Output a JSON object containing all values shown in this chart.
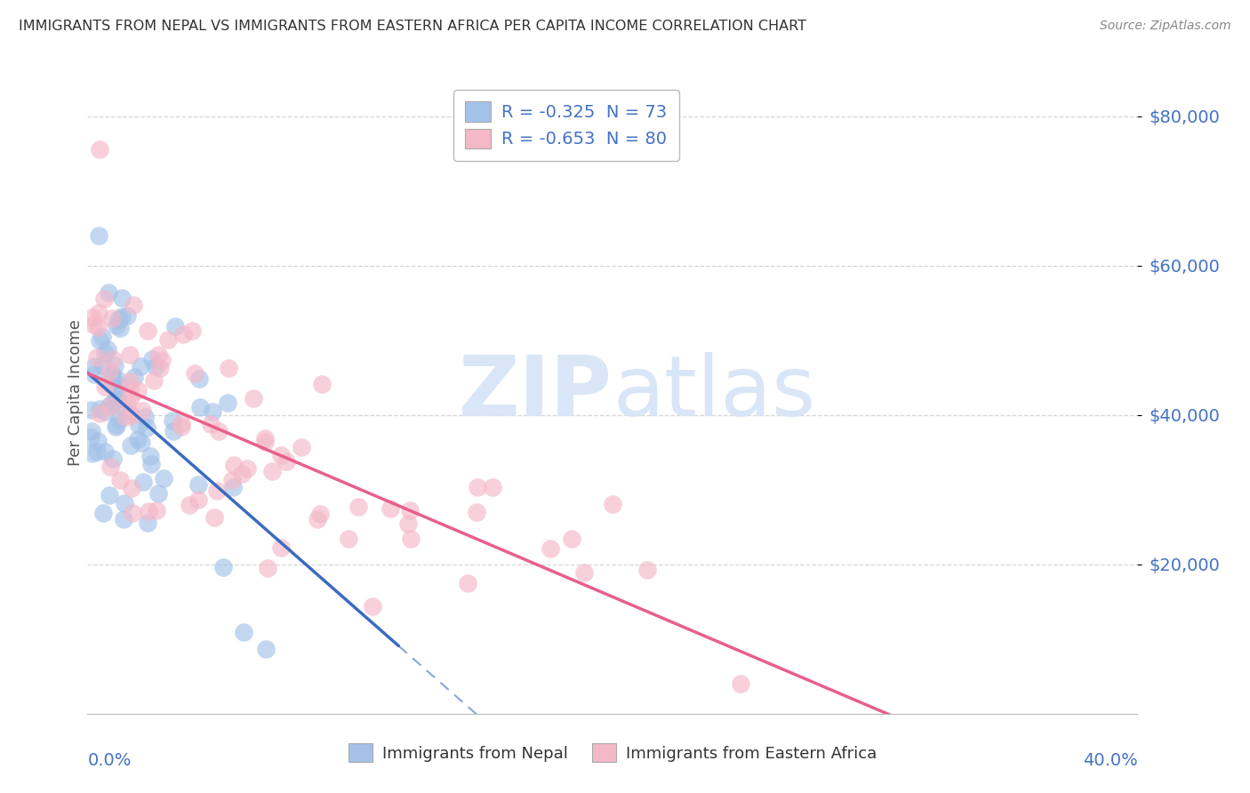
{
  "title": "IMMIGRANTS FROM NEPAL VS IMMIGRANTS FROM EASTERN AFRICA PER CAPITA INCOME CORRELATION CHART",
  "source": "Source: ZipAtlas.com",
  "ylabel": "Per Capita Income",
  "watermark_zip": "ZIP",
  "watermark_atlas": "atlas",
  "nepal": {
    "R": -0.325,
    "N": 73,
    "color": "#a4c2e8",
    "edge_color": "#a4c2e8",
    "line_color": "#3b6bbf"
  },
  "eastern_africa": {
    "R": -0.653,
    "N": 80,
    "color": "#f4b8c8",
    "edge_color": "#f4b8c8",
    "line_color": "#e8608a"
  },
  "xlim": [
    0.0,
    0.405
  ],
  "ylim": [
    0,
    86000
  ],
  "yticks": [
    20000,
    40000,
    60000,
    80000
  ],
  "ytick_labels": [
    "$20,000",
    "$40,000",
    "$60,000",
    "$80,000"
  ],
  "background_color": "#ffffff",
  "grid_color": "#cccccc",
  "title_color": "#333333",
  "axis_label_color": "#4472c4",
  "legend_text_color": "#4472c4",
  "legend_patch_nepal": "#a4c2e8",
  "legend_patch_africa": "#f4b8c8"
}
